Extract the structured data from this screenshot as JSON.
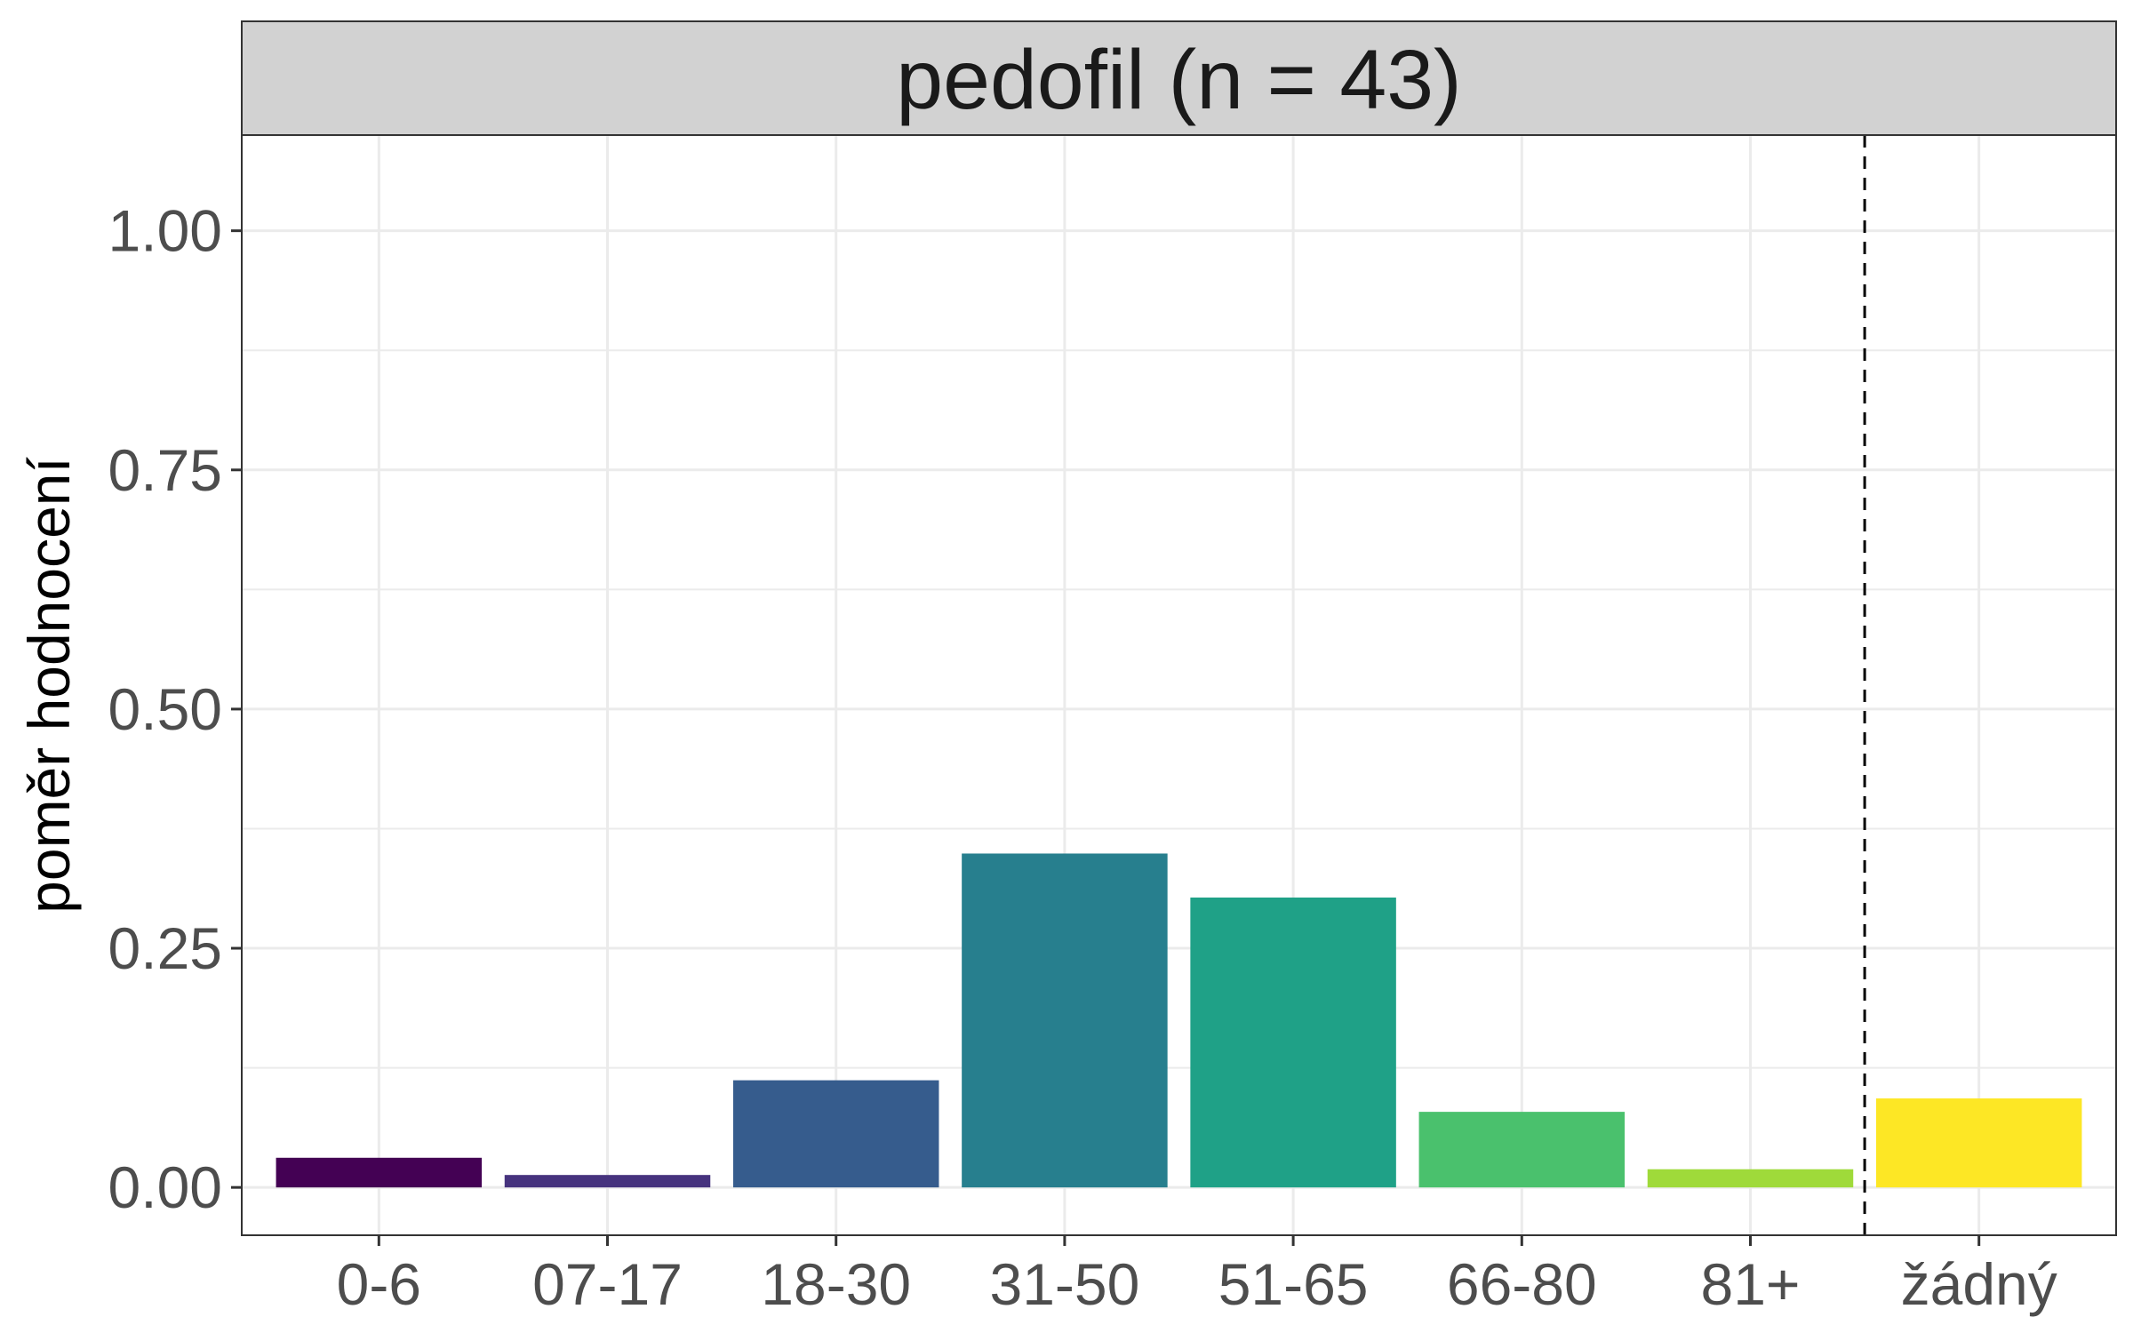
{
  "chart_data": {
    "type": "bar",
    "title": "pedofil (n = 43)",
    "xlabel": "",
    "ylabel": "poměr hodnocení",
    "categories": [
      "0-6",
      "07-17",
      "18-30",
      "31-50",
      "51-65",
      "66-80",
      "81+",
      "žádný"
    ],
    "values": [
      0.031,
      0.013,
      0.112,
      0.349,
      0.303,
      0.079,
      0.019,
      0.093
    ],
    "colors": [
      "#440154",
      "#46337e",
      "#365c8d",
      "#277f8e",
      "#1fa187",
      "#4ac16d",
      "#9fda3a",
      "#fde725"
    ],
    "ylim": [
      -0.05,
      1.1
    ],
    "yticks": [
      "0.00",
      "0.25",
      "0.50",
      "0.75",
      "1.00"
    ],
    "ytick_values": [
      0,
      0.25,
      0.5,
      0.75,
      1.0
    ],
    "reference_line": {
      "after_category": "81+",
      "style": "dashed",
      "color": "#000000"
    },
    "grid": true,
    "legend": "none"
  }
}
